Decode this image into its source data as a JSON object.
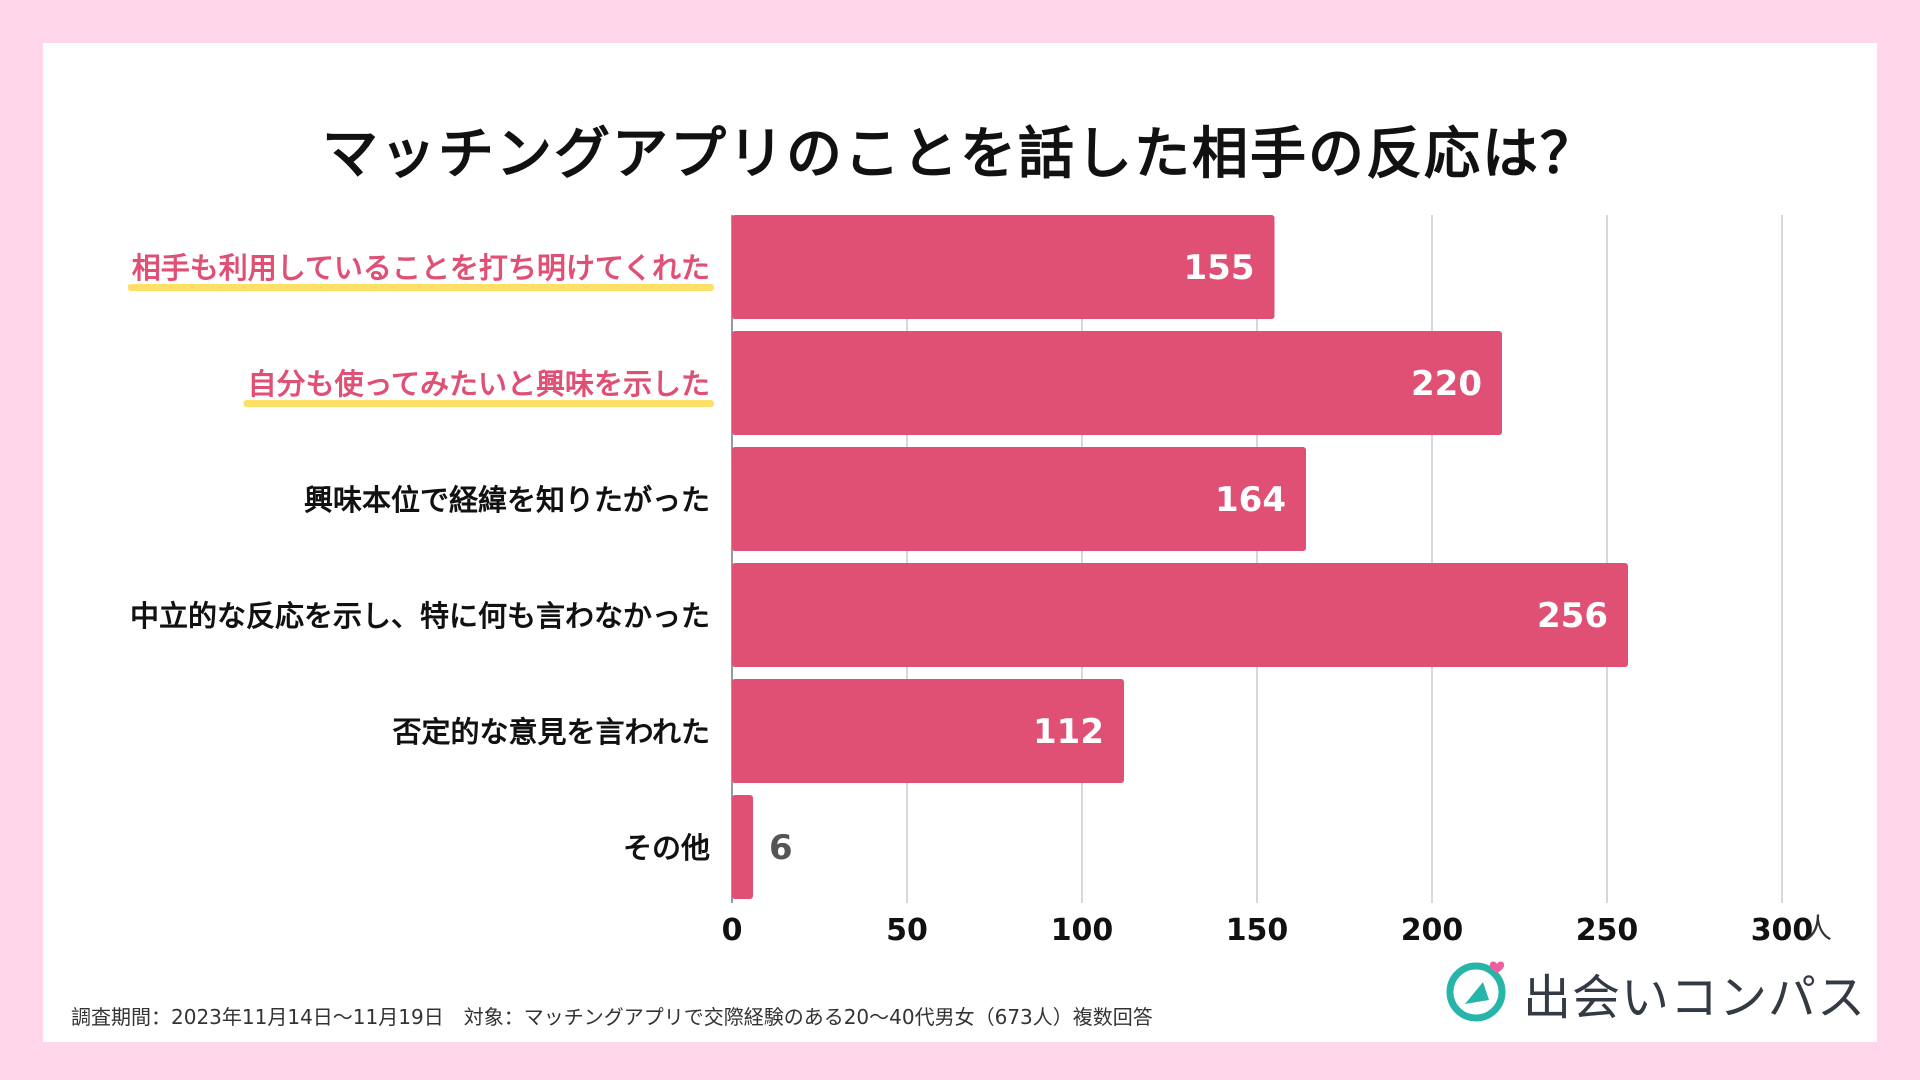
{
  "colors": {
    "background": "#ffd6ea",
    "bar": "#e04f74",
    "highlight_text": "#e04f74",
    "highlight_underline": "#ffe066",
    "value_inside": "#ffffff",
    "value_outside": "#555555",
    "grid": "#cccccc",
    "logo_teal": "#27b5a9",
    "logo_pink": "#ef5fa0"
  },
  "chart_data": {
    "type": "bar",
    "orientation": "horizontal",
    "title": "マッチングアプリのことを話した相手の反応は？",
    "categories": [
      "相手も利用していることを打ち明けてくれた",
      "自分も使ってみたいと興味を示した",
      "興味本位で経緯を知りたがった",
      "中立的な反応を示し、特に何も言わなかった",
      "否定的な意見を言われた",
      "その他"
    ],
    "highlighted": [
      true,
      true,
      false,
      false,
      false,
      false
    ],
    "values": [
      155,
      220,
      164,
      256,
      112,
      6
    ],
    "value_labels": [
      "155",
      "220",
      "164",
      "256",
      "112",
      "6"
    ],
    "xticks": [
      0,
      50,
      100,
      150,
      200,
      250,
      300
    ],
    "xtick_labels": [
      "0",
      "50",
      "100",
      "150",
      "200",
      "250",
      "300"
    ],
    "xlim": [
      0,
      300
    ],
    "unit": "人",
    "grid": true
  },
  "footnote": "調査期間：2023年11月14日〜11月19日　対象：マッチングアプリで交際経験のある20〜40代男女（673人）複数回答",
  "logo": {
    "text": "出会いコンパス",
    "icon": "compass-heart-icon"
  }
}
